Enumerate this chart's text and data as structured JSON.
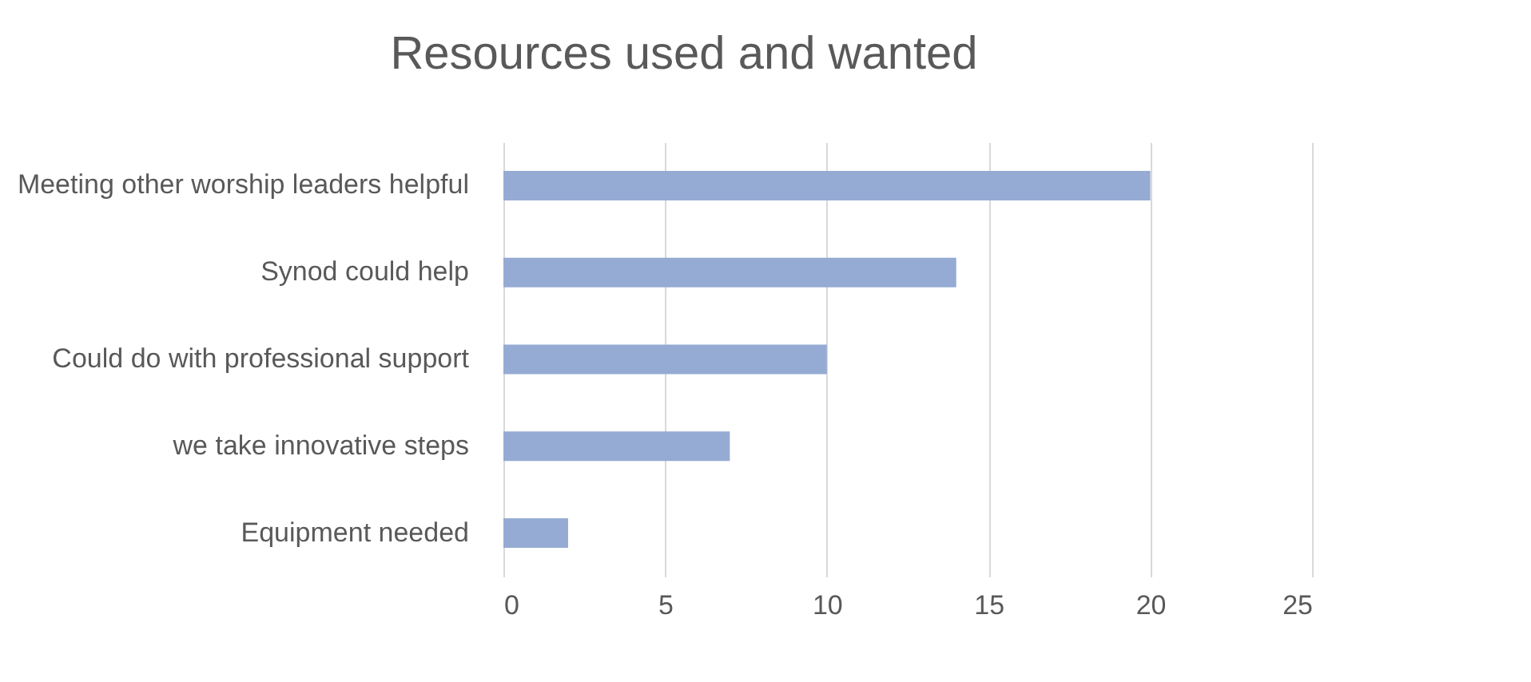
{
  "chart_data": {
    "type": "bar",
    "orientation": "horizontal",
    "title": "Resources used and wanted",
    "categories": [
      "Meeting other worship leaders helpful",
      "Synod could help",
      "Could do with professional support",
      "we take innovative steps",
      "Equipment needed"
    ],
    "values": [
      20,
      14,
      10,
      7,
      2
    ],
    "color": "#95abd3",
    "xlim": [
      0,
      25
    ],
    "xticks": [
      0,
      5,
      10,
      15,
      20,
      25
    ],
    "grid": "x"
  }
}
